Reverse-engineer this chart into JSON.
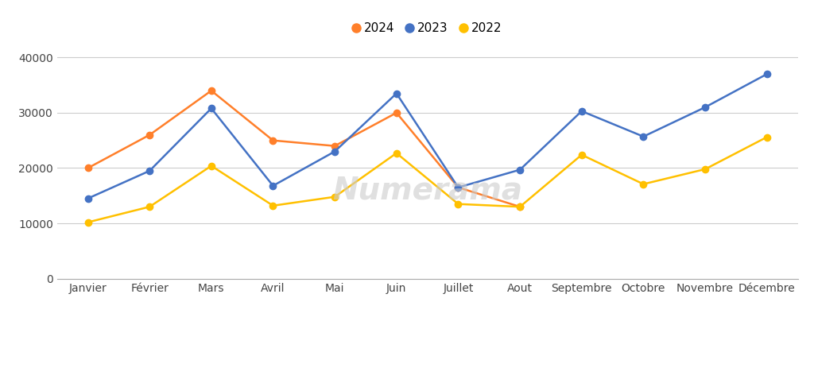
{
  "months": [
    "Janvier",
    "Février",
    "Mars",
    "Avril",
    "Mai",
    "Juin",
    "Juillet",
    "Aout",
    "Septembre",
    "Octobre",
    "Novembre",
    "Décembre"
  ],
  "series": {
    "2024": {
      "values": [
        20000,
        26000,
        34000,
        25000,
        24000,
        30000,
        16500,
        13000,
        null,
        null,
        null,
        null
      ],
      "color": "#FF7F2A",
      "marker": "o"
    },
    "2023": {
      "values": [
        14500,
        19500,
        30800,
        16800,
        23000,
        33500,
        16500,
        19700,
        30300,
        25700,
        31000,
        37000
      ],
      "color": "#4472C4",
      "marker": "o"
    },
    "2022": {
      "values": [
        10200,
        13000,
        20400,
        13200,
        14800,
        22700,
        13500,
        13000,
        22400,
        17100,
        19800,
        25600
      ],
      "color": "#FFC000",
      "marker": "o"
    }
  },
  "legend_order": [
    "2024",
    "2023",
    "2022"
  ],
  "ylim": [
    0,
    42000
  ],
  "yticks": [
    0,
    10000,
    20000,
    30000,
    40000
  ],
  "watermark": "Numerama",
  "background_color": "#ffffff",
  "grid_color": "#cccccc",
  "tick_fontsize": 10,
  "legend_fontsize": 11
}
